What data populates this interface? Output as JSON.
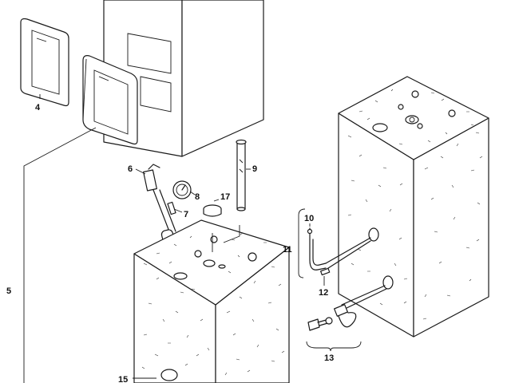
{
  "labels": {
    "p4": "4",
    "p5": "5",
    "p6": "6",
    "p7": "7",
    "p8": "8",
    "p9": "9",
    "p10": "10",
    "p11": "11",
    "p12": "12",
    "p13": "13",
    "p15": "15",
    "p17": "17"
  }
}
